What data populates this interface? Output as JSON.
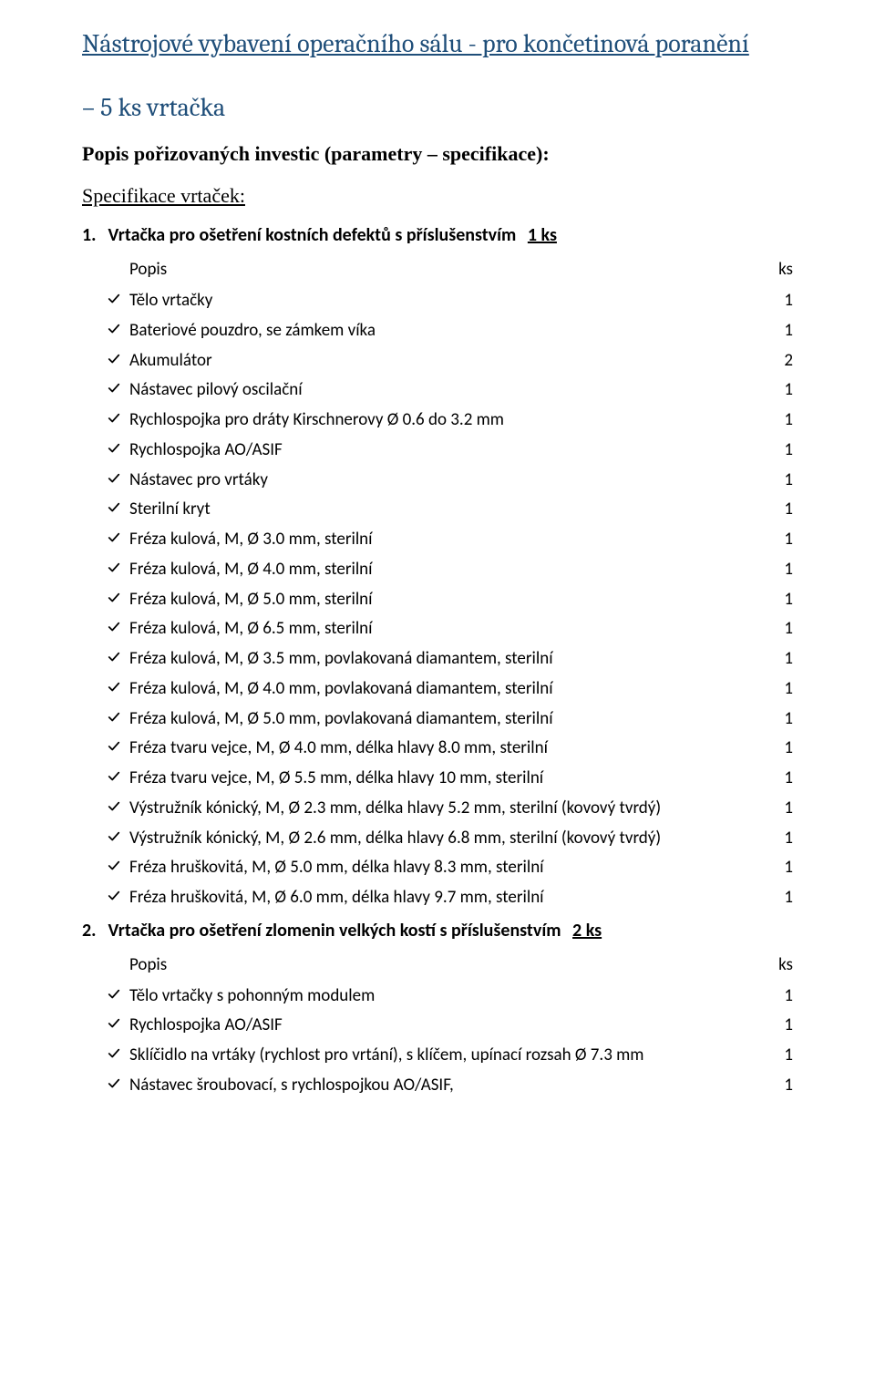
{
  "title": "Nástrojové vybavení operačního sálu  - pro končetinová poranění",
  "subtitle": "– 5  ks  vrtačka",
  "invest_desc": "Popis pořizovaných investic  (parametry – specifikace):",
  "spec_label": "Specifikace vrtaček:",
  "columns": {
    "popis": "Popis",
    "ks": "ks"
  },
  "check_color": "#000000",
  "sections": [
    {
      "num": "1.",
      "title": "Vrtačka pro ošetření kostních defektů s příslušenstvím",
      "qty": "1 ks",
      "show_header": true,
      "items": [
        {
          "label": "Tělo vrtačky",
          "qty": "1"
        },
        {
          "label": "Bateriové pouzdro, se zámkem víka",
          "qty": "1"
        },
        {
          "label": "Akumulátor",
          "qty": "2"
        },
        {
          "label": "Nástavec pilový oscilační",
          "qty": "1"
        },
        {
          "label": "Rychlospojka pro dráty Kirschnerovy Ø 0.6 do 3.2 mm",
          "qty": "1"
        },
        {
          "label": "Rychlospojka AO/ASIF",
          "qty": "1"
        },
        {
          "label": "Nástavec pro vrtáky",
          "qty": "1"
        },
        {
          "label": "Sterilní kryt",
          "qty": "1"
        },
        {
          "label": "Fréza kulová, M, Ø 3.0 mm, sterilní",
          "qty": "1"
        },
        {
          "label": "Fréza kulová, M, Ø 4.0 mm, sterilní",
          "qty": "1"
        },
        {
          "label": "Fréza kulová, M, Ø 5.0 mm, sterilní",
          "qty": "1"
        },
        {
          "label": "Fréza kulová, M, Ø 6.5 mm, sterilní",
          "qty": "1"
        },
        {
          "label": "Fréza kulová, M, Ø 3.5 mm, povlakovaná diamantem, sterilní",
          "qty": "1"
        },
        {
          "label": "Fréza kulová, M, Ø 4.0 mm, povlakovaná diamantem, sterilní",
          "qty": "1"
        },
        {
          "label": "Fréza kulová, M, Ø 5.0 mm, povlakovaná diamantem, sterilní",
          "qty": "1"
        },
        {
          "label": "Fréza tvaru vejce, M, Ø 4.0 mm, délka hlavy 8.0 mm, sterilní",
          "qty": "1"
        },
        {
          "label": "Fréza tvaru vejce, M, Ø 5.5 mm, délka hlavy 10 mm, sterilní",
          "qty": "1"
        },
        {
          "label": "Výstružník kónický, M, Ø 2.3 mm, délka hlavy 5.2 mm, sterilní (kovový tvrdý)",
          "qty": "1"
        },
        {
          "label": "Výstružník kónický, M, Ø 2.6 mm, délka hlavy 6.8 mm, sterilní (kovový tvrdý)",
          "qty": "1"
        },
        {
          "label": "Fréza hruškovitá, M, Ø 5.0 mm, délka hlavy 8.3 mm, sterilní",
          "qty": "1"
        },
        {
          "label": "Fréza hruškovitá, M, Ø 6.0 mm, délka hlavy 9.7 mm, sterilní",
          "qty": "1"
        }
      ]
    },
    {
      "num": "2.",
      "title": "Vrtačka pro ošetření zlomenin velkých kostí s příslušenstvím",
      "qty": "2 ks",
      "show_header": true,
      "items": [
        {
          "label": "Tělo vrtačky s pohonným modulem",
          "qty": "1"
        },
        {
          "label": "Rychlospojka AO/ASIF",
          "qty": "1"
        },
        {
          "label": "Sklíčidlo na vrtáky (rychlost pro vrtání), s klíčem, upínací rozsah Ø 7.3 mm",
          "qty": "1"
        },
        {
          "label": "Nástavec šroubovací, s rychlospojkou AO/ASIF,",
          "qty": "1"
        }
      ]
    }
  ]
}
